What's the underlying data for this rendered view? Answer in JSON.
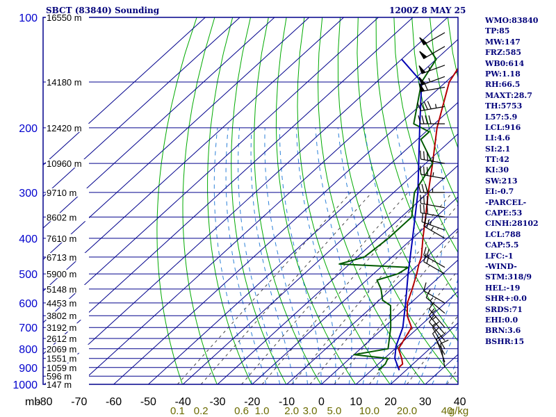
{
  "header": {
    "station": "SBCT (83840) Sounding",
    "datetime": "1200Z  8 MAY 25"
  },
  "colors": {
    "frame": "#00008c",
    "pressure_label": "#0000cd",
    "temperature": "#b40000",
    "dewpoint": "#005a00",
    "parcel": "#0000b4",
    "dry_adiabat": "#00aa00",
    "moist_adiabat": "#2b80d8",
    "mixing_ratio": "#444444",
    "mixing_ratio_label": "#6b6b00",
    "wind": "#000000",
    "index_text": "#00007a"
  },
  "chart_data": {
    "type": "line",
    "title": "SBCT (83840) Sounding",
    "subtitle": "1200Z  8 MAY 25",
    "x_axis": {
      "unit_label": "mb",
      "range": [
        -80,
        40
      ],
      "ticks": [
        -80,
        -70,
        -60,
        -50,
        -40,
        -30,
        -20,
        -10,
        0,
        10,
        20,
        30,
        40
      ],
      "tick_labels": [
        "-80",
        "-70",
        "-60",
        "-50",
        "-40",
        "-30",
        "-20",
        "-10",
        "0",
        "10",
        "20",
        "30",
        "40"
      ]
    },
    "y_axis": {
      "scale": "log",
      "range": [
        1000,
        100
      ],
      "ticks": [
        100,
        200,
        300,
        400,
        500,
        600,
        700,
        800,
        900,
        1000
      ],
      "tick_labels": [
        "100",
        "200",
        "300",
        "400",
        "500",
        "600",
        "700",
        "800",
        "900",
        "1000"
      ]
    },
    "height_labels": [
      {
        "p": 100,
        "label": "16550 m"
      },
      {
        "p": 150,
        "label": "14180 m"
      },
      {
        "p": 200,
        "label": "12420 m"
      },
      {
        "p": 250,
        "label": "10960 m"
      },
      {
        "p": 300,
        "label": "9710 m"
      },
      {
        "p": 350,
        "label": "8602 m"
      },
      {
        "p": 400,
        "label": "7610 m"
      },
      {
        "p": 450,
        "label": "6713 m"
      },
      {
        "p": 500,
        "label": "5900 m"
      },
      {
        "p": 550,
        "label": "5148 m"
      },
      {
        "p": 600,
        "label": "4453 m"
      },
      {
        "p": 650,
        "label": "3802 m"
      },
      {
        "p": 700,
        "label": "3192 m"
      },
      {
        "p": 750,
        "label": "2612 m"
      },
      {
        "p": 800,
        "label": "2069 m"
      },
      {
        "p": 850,
        "label": "1551 m"
      },
      {
        "p": 900,
        "label": "1059 m"
      },
      {
        "p": 950,
        "label": "596 m"
      },
      {
        "p": 1000,
        "label": "147 m"
      }
    ],
    "mixing_ratio_labels": [
      "0.1",
      "0.2",
      "0.6",
      "1.0",
      "2.0",
      "3.0",
      "5.0",
      "10.0",
      "20.0",
      "40",
      "g/kg"
    ],
    "series": [
      {
        "id": "temperature",
        "points": [
          {
            "p": 915,
            "t": 18
          },
          {
            "p": 900,
            "t": 17
          },
          {
            "p": 880,
            "t": 17
          },
          {
            "p": 850,
            "t": 15
          },
          {
            "p": 800,
            "t": 11
          },
          {
            "p": 700,
            "t": 8
          },
          {
            "p": 650,
            "t": 3
          },
          {
            "p": 600,
            "t": -1
          },
          {
            "p": 550,
            "t": -4
          },
          {
            "p": 500,
            "t": -7.5
          },
          {
            "p": 470,
            "t": -10
          },
          {
            "p": 450,
            "t": -11.5
          },
          {
            "p": 400,
            "t": -17
          },
          {
            "p": 350,
            "t": -23
          },
          {
            "p": 300,
            "t": -30
          },
          {
            "p": 250,
            "t": -38
          },
          {
            "p": 200,
            "t": -48
          },
          {
            "p": 150,
            "t": -59
          },
          {
            "p": 130,
            "t": -62
          },
          {
            "p": 120,
            "t": -63
          },
          {
            "p": 100,
            "t": -66
          }
        ]
      },
      {
        "id": "dewpoint",
        "points": [
          {
            "p": 915,
            "t": 12
          },
          {
            "p": 880,
            "t": 12
          },
          {
            "p": 850,
            "t": 11
          },
          {
            "p": 830,
            "t": 0
          },
          {
            "p": 800,
            "t": 8
          },
          {
            "p": 700,
            "t": 2
          },
          {
            "p": 610,
            "t": -5
          },
          {
            "p": 590,
            "t": -9
          },
          {
            "p": 550,
            "t": -13
          },
          {
            "p": 520,
            "t": -17
          },
          {
            "p": 500,
            "t": -13
          },
          {
            "p": 480,
            "t": -12
          },
          {
            "p": 470,
            "t": -33
          },
          {
            "p": 450,
            "t": -28
          },
          {
            "p": 400,
            "t": -27
          },
          {
            "p": 350,
            "t": -27
          },
          {
            "p": 300,
            "t": -34
          },
          {
            "p": 250,
            "t": -38
          },
          {
            "p": 215,
            "t": -49
          },
          {
            "p": 205,
            "t": -49
          },
          {
            "p": 195,
            "t": -56
          },
          {
            "p": 150,
            "t": -67
          },
          {
            "p": 130,
            "t": -70
          },
          {
            "p": 115,
            "t": -80
          }
        ]
      },
      {
        "id": "parcel",
        "points": [
          {
            "p": 915,
            "t": 18
          },
          {
            "p": 850,
            "t": 13
          },
          {
            "p": 788,
            "t": 9.5
          },
          {
            "p": 700,
            "t": 5.5
          },
          {
            "p": 600,
            "t": -1.5
          },
          {
            "p": 500,
            "t": -10
          },
          {
            "p": 400,
            "t": -20
          },
          {
            "p": 300,
            "t": -33
          },
          {
            "p": 250,
            "t": -42
          },
          {
            "p": 200,
            "t": -53
          },
          {
            "p": 150,
            "t": -67
          },
          {
            "p": 130,
            "t": -80
          }
        ]
      }
    ],
    "wind_barbs": [
      {
        "p": 110,
        "dir": 240,
        "kt": 50
      },
      {
        "p": 120,
        "dir": 240,
        "kt": 50
      },
      {
        "p": 135,
        "dir": 250,
        "kt": 55
      },
      {
        "p": 145,
        "dir": 250,
        "kt": 55
      },
      {
        "p": 155,
        "dir": 260,
        "kt": 60
      },
      {
        "p": 175,
        "dir": 260,
        "kt": 45
      },
      {
        "p": 195,
        "dir": 270,
        "kt": 40
      },
      {
        "p": 250,
        "dir": 280,
        "kt": 35
      },
      {
        "p": 275,
        "dir": 280,
        "kt": 35
      },
      {
        "p": 300,
        "dir": 270,
        "kt": 35
      },
      {
        "p": 330,
        "dir": 280,
        "kt": 30
      },
      {
        "p": 350,
        "dir": 280,
        "kt": 30
      },
      {
        "p": 380,
        "dir": 290,
        "kt": 25
      },
      {
        "p": 400,
        "dir": 300,
        "kt": 25
      },
      {
        "p": 480,
        "dir": 300,
        "kt": 20
      },
      {
        "p": 500,
        "dir": 300,
        "kt": 20
      },
      {
        "p": 600,
        "dir": 300,
        "kt": 15
      },
      {
        "p": 640,
        "dir": 310,
        "kt": 15
      },
      {
        "p": 700,
        "dir": 320,
        "kt": 15
      },
      {
        "p": 730,
        "dir": 320,
        "kt": 15
      },
      {
        "p": 760,
        "dir": 320,
        "kt": 15
      },
      {
        "p": 800,
        "dir": 330,
        "kt": 10
      },
      {
        "p": 830,
        "dir": 330,
        "kt": 10
      },
      {
        "p": 870,
        "dir": 340,
        "kt": 10
      },
      {
        "p": 900,
        "dir": 350,
        "kt": 10
      }
    ]
  },
  "indices": [
    "WMO:83840",
    "TP:85",
    "MW:147",
    "FRZ:585",
    "WB0:614",
    "PW:1.18",
    "RH:66.5",
    "MAXT:28.7",
    "TH:5753",
    "L57:5.9",
    "LCL:916",
    "LI:4.6",
    "SI:2.1",
    "TT:42",
    "KI:30",
    "SW:213",
    "EI:-0.7",
    "-PARCEL-",
    "CAPE:53",
    "CINH:28102",
    "LCL:788",
    "CAP:5.5",
    "LFC:-1",
    "-WIND-",
    "STM:318/9",
    "HEL:-19",
    "SHR+:0.0",
    "SRDS:71",
    "EHI:0.0",
    "BRN:3.6",
    "BSHR:15"
  ]
}
